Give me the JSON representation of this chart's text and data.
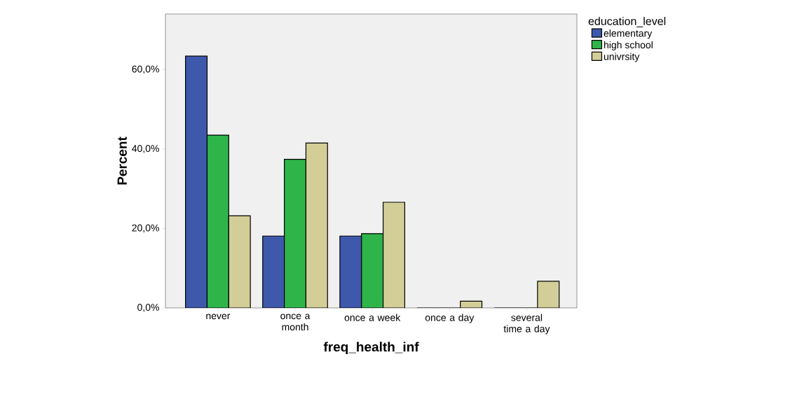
{
  "chart_data": {
    "type": "bar",
    "xlabel": "freq_health_inf",
    "ylabel": "Percent",
    "legend_title": "education_level",
    "categories": [
      "never",
      "once a month",
      "once a week",
      "once a day",
      "several time a day"
    ],
    "series": [
      {
        "name": "elementary",
        "color": "#3e58ac",
        "values": [
          63.4,
          18.1,
          18.1,
          0,
          0
        ]
      },
      {
        "name": "high school",
        "color": "#2fb44a",
        "values": [
          43.5,
          37.4,
          18.7,
          0,
          0
        ]
      },
      {
        "name": "univrsity",
        "color": "#d3ce97",
        "values": [
          23.2,
          41.5,
          26.6,
          1.7,
          6.7
        ]
      }
    ],
    "ylim": [
      0,
      74
    ],
    "yticks": [
      {
        "value": 0,
        "label": "0,0%"
      },
      {
        "value": 20,
        "label": "20,0%"
      },
      {
        "value": 40,
        "label": "40,0%"
      },
      {
        "value": 60,
        "label": "60,0%"
      }
    ],
    "grid": false,
    "legend": "top right"
  }
}
